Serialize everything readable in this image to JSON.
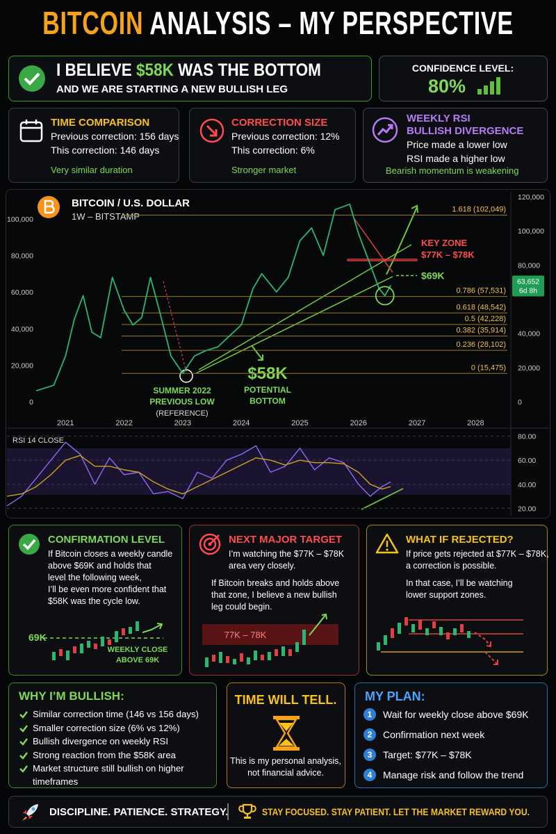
{
  "header": {
    "title_accent": "BITCOIN",
    "title": "ANALYSIS – MY PERSPECTIVE"
  },
  "thesis": {
    "pre": "I BELIEVE",
    "price": "$58K",
    "post": "WAS THE BOTTOM",
    "subline": "AND WE ARE STARTING A NEW BULLISH LEG"
  },
  "confidence": {
    "label": "CONFIDENCE LEVEL:",
    "value": "80%"
  },
  "cards": [
    {
      "title": [
        "TIME COMPARISON"
      ],
      "lines": [
        "Previous correction: 156 days",
        "This correction: 146 days"
      ],
      "note": "Very similar duration"
    },
    {
      "title": [
        "CORRECTION SIZE"
      ],
      "lines": [
        "Previous correction: 12%",
        "This correction: 6%"
      ],
      "note": "Stronger market"
    },
    {
      "title": [
        "WEEKLY RSI",
        "BULLISH DIVERGENCE"
      ],
      "lines": [
        "Price made a lower low",
        "RSI made a higher low"
      ],
      "note": "Bearish momentum is weakening"
    }
  ],
  "chart_data": [
    {
      "type": "line",
      "title": "BITCOIN / U.S. DOLLAR",
      "subtitle": "1W – BITSTAMP",
      "x": [
        2020.5,
        2020.8,
        2021.0,
        2021.15,
        2021.3,
        2021.45,
        2021.6,
        2021.8,
        2022.0,
        2022.15,
        2022.3,
        2022.45,
        2022.6,
        2022.8,
        2023.0,
        2023.2,
        2023.4,
        2023.6,
        2023.8,
        2024.0,
        2024.2,
        2024.35,
        2024.6,
        2024.8,
        2025.0,
        2025.2,
        2025.4,
        2025.6,
        2025.85,
        2026.0,
        2026.2,
        2026.35,
        2026.45,
        2026.55
      ],
      "series": [
        {
          "color": "#2bb673",
          "values": [
            6000,
            9000,
            25000,
            45000,
            58000,
            38000,
            35000,
            68000,
            50000,
            42000,
            46000,
            68000,
            50000,
            25000,
            15500,
            25000,
            28000,
            30000,
            36000,
            42000,
            62000,
            70000,
            60000,
            68000,
            88000,
            95000,
            80000,
            105000,
            108000,
            92000,
            75000,
            62000,
            58000,
            63652
          ]
        }
      ],
      "xlim": [
        2020,
        2028.6
      ],
      "xticks": [
        2021,
        2022,
        2023,
        2024,
        2025,
        2026,
        2027,
        2028
      ],
      "ylim": [
        -7600,
        112500
      ],
      "yticks": [
        0,
        {
          "value": 20000,
          "label": "20,000"
        },
        {
          "value": 40000,
          "label": "40,000"
        },
        {
          "value": 60000,
          "label": "60,000"
        },
        {
          "value": 80000,
          "label": "80,000"
        },
        {
          "value": 100000,
          "label": "100,000"
        }
      ],
      "y2lim": [
        -8100,
        120400
      ],
      "y2ticks": [
        0,
        {
          "value": 20000,
          "label": "20,000"
        },
        {
          "value": 40000,
          "label": "40,000"
        },
        {
          "value": 80000,
          "label": "80,000"
        },
        {
          "value": 100000,
          "label": "100,000"
        },
        {
          "value": 120000,
          "label": "120,000"
        }
      ],
      "levels": [
        {
          "label": "1.618 (102,049)",
          "value": 102049
        },
        {
          "label": "0.786 (57,531)",
          "value": 57531
        },
        {
          "label": "0.618 (48,542)",
          "value": 48542
        },
        {
          "label": "0.5 (42,228)",
          "value": 42228
        },
        {
          "label": "0.382 (35,914)",
          "value": 35914
        },
        {
          "label": "0.236 (28,102)",
          "value": 28102
        },
        {
          "label": "0 (15,475)",
          "value": 15475
        }
      ],
      "key_zone": {
        "label": "KEY ZONE",
        "range": "$77K – $78K",
        "low": 77000,
        "high": 78000
      },
      "resistance": {
        "label": "$69K",
        "value": 69000
      },
      "bottom": {
        "label": "$58K",
        "caption": [
          "POTENTIAL",
          "BOTTOM"
        ],
        "value": 58000
      },
      "previous_low": {
        "caption": [
          "SUMMER 2022",
          "PREVIOUS LOW"
        ],
        "note": "(REFERENCE)"
      },
      "last_price": {
        "value": 63652,
        "label": "63,652",
        "countdown": "6d 8h"
      }
    },
    {
      "type": "line",
      "title": "RSI 14 CLOSE",
      "x": [
        2020.0,
        2020.25,
        2020.5,
        2020.75,
        2021.0,
        2021.25,
        2021.5,
        2021.75,
        2022.0,
        2022.25,
        2022.5,
        2022.75,
        2023.0,
        2023.25,
        2023.5,
        2023.75,
        2024.0,
        2024.25,
        2024.5,
        2024.75,
        2025.0,
        2025.25,
        2025.5,
        2025.75,
        2026.0,
        2026.2,
        2026.4,
        2026.55
      ],
      "series": [
        {
          "color": "#8c6cf5",
          "values": [
            22,
            30,
            45,
            60,
            75,
            65,
            40,
            62,
            48,
            50,
            32,
            34,
            28,
            50,
            45,
            60,
            65,
            72,
            50,
            55,
            70,
            52,
            62,
            58,
            40,
            30,
            38,
            42
          ]
        },
        {
          "color": "#c9a227",
          "values": [
            30,
            32,
            38,
            48,
            60,
            64,
            55,
            55,
            52,
            50,
            42,
            36,
            32,
            38,
            44,
            50,
            56,
            62,
            60,
            56,
            60,
            58,
            58,
            57,
            50,
            40,
            36,
            38
          ]
        }
      ],
      "xlim": [
        2020,
        2028.6
      ],
      "ylim": [
        15,
        85
      ],
      "yticks": [
        {
          "value": 20,
          "label": "20.00"
        },
        {
          "value": 40,
          "label": "40.00"
        },
        {
          "value": 60,
          "label": "60.00"
        },
        {
          "value": 80,
          "label": "80.00"
        }
      ],
      "grid": true
    }
  ],
  "details": [
    {
      "title": "CONFIRMATION LEVEL",
      "paragraphs": [
        [
          "If Bitcoin closes a weekly candle",
          "above $69K and holds that",
          "level the following week,",
          "I’ll be even more confident that",
          "$58K was the cycle low."
        ]
      ],
      "labels": [
        "69K",
        "WEEKLY CLOSE",
        "ABOVE 69K"
      ]
    },
    {
      "title": "NEXT MAJOR TARGET",
      "paragraphs": [
        [
          "I’m watching the $77K – $78K",
          "area very closely."
        ],
        [
          "If Bitcoin breaks and holds above",
          "that zone, I believe a new bullish",
          "leg could begin."
        ]
      ],
      "labels": [
        "77K – 78K"
      ]
    },
    {
      "title": "WHAT IF REJECTED?",
      "paragraphs": [
        [
          "If price gets rejected at $77K – $78K,",
          "a correction is possible."
        ],
        [
          "In that case, I’ll be watching",
          "lower support zones."
        ]
      ],
      "labels": []
    }
  ],
  "bullish": {
    "title": "WHY I’M BULLISH:",
    "items": [
      "Similar correction time (146 vs 156 days)",
      "Smaller correction size (6% vs 12%)",
      "Bullish divergence on weekly RSI",
      "Strong reaction from the $58K area",
      "Market structure still bullish on higher timeframes"
    ]
  },
  "disclaimer": {
    "title": "TIME WILL TELL.",
    "lines": [
      "This is my personal analysis,",
      "not financial advice."
    ]
  },
  "plan": {
    "title": "MY PLAN:",
    "steps": [
      {
        "number": 1,
        "text": "Wait for weekly close above $69K"
      },
      {
        "number": 2,
        "text": "Confirmation next week"
      },
      {
        "number": 3,
        "text": "Target: $77K – $78K"
      },
      {
        "number": 4,
        "text": "Manage risk and follow the trend"
      }
    ]
  },
  "footer": {
    "left": "DISCIPLINE. PATIENCE. STRATEGY.",
    "right": "STAY FOCUSED. STAY PATIENT. LET THE MARKET REWARD YOU."
  }
}
